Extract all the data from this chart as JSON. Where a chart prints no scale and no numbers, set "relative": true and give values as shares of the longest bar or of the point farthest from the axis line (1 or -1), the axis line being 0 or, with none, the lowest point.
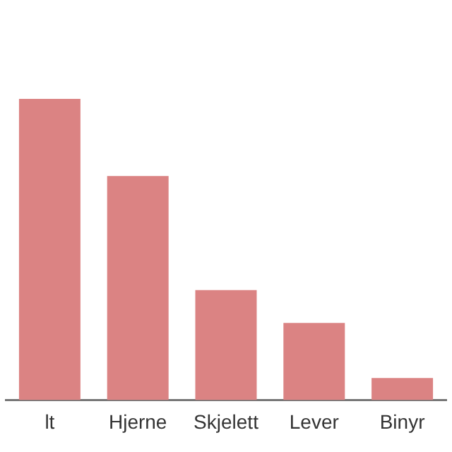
{
  "chart_data": {
    "type": "bar",
    "relative": true,
    "categories": [
      "lt",
      "Hjerne",
      "Skjelett",
      "Lever",
      "Binyr"
    ],
    "values": [
      1,
      0.744,
      0.365,
      0.256,
      0.073
    ],
    "color": "#db8383",
    "grid": false,
    "legend": false
  }
}
